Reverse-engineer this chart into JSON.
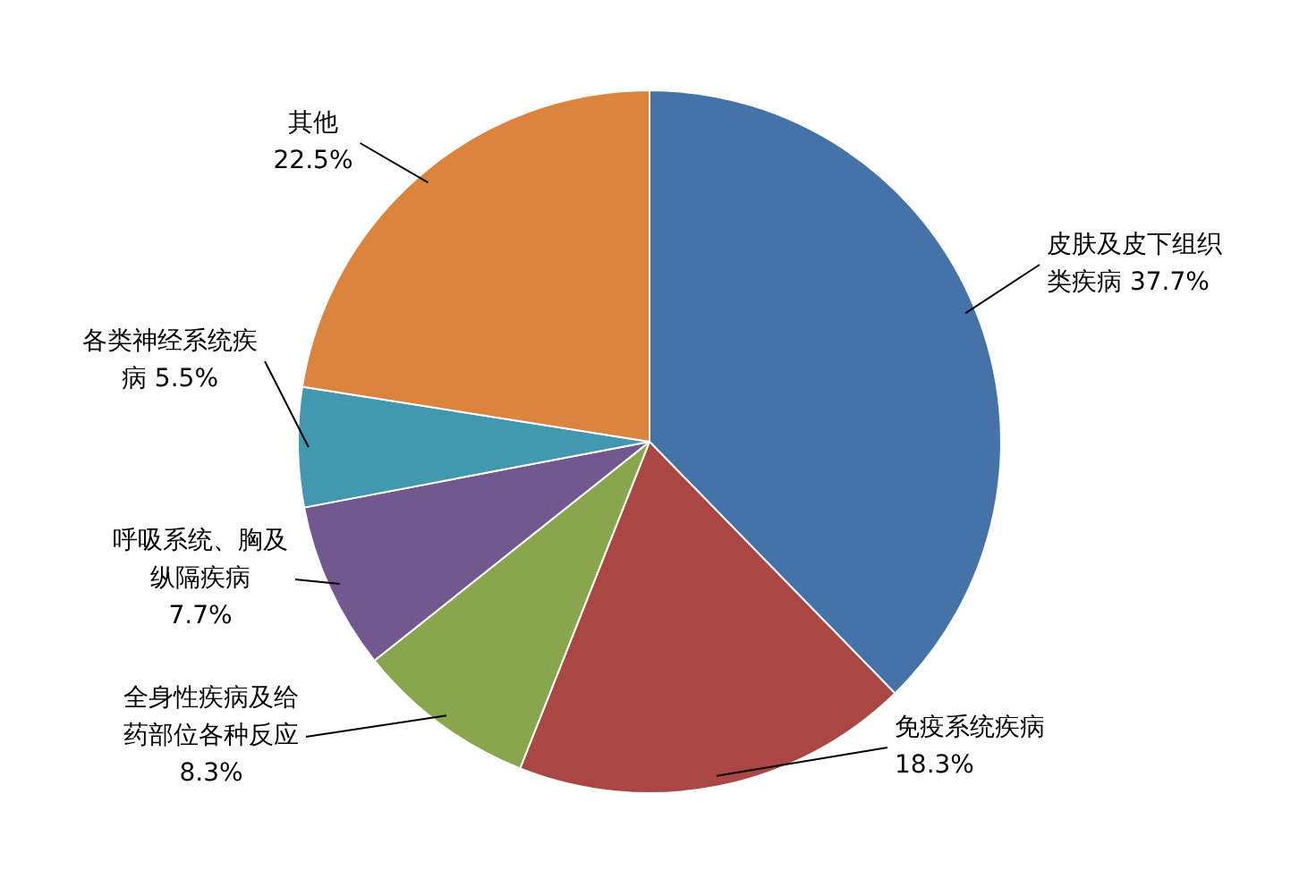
{
  "chart_data": {
    "type": "pie",
    "categories": [
      "皮肤及皮下组织类疾病",
      "免疫系统疾病",
      "全身性疾病及给药部位各种反应",
      "呼吸系统、胸及纵隔疾病",
      "各类神经系统疾病",
      "其他"
    ],
    "values": [
      37.7,
      18.3,
      8.3,
      7.7,
      5.5,
      22.5
    ],
    "value_labels": [
      "37.7%",
      "18.3%",
      "8.3%",
      "7.7%",
      "5.5%",
      "22.5%"
    ],
    "colors": [
      "#4572a7",
      "#aa4643",
      "#89a54e",
      "#71588f",
      "#4198af",
      "#db843d"
    ],
    "legend": false
  }
}
